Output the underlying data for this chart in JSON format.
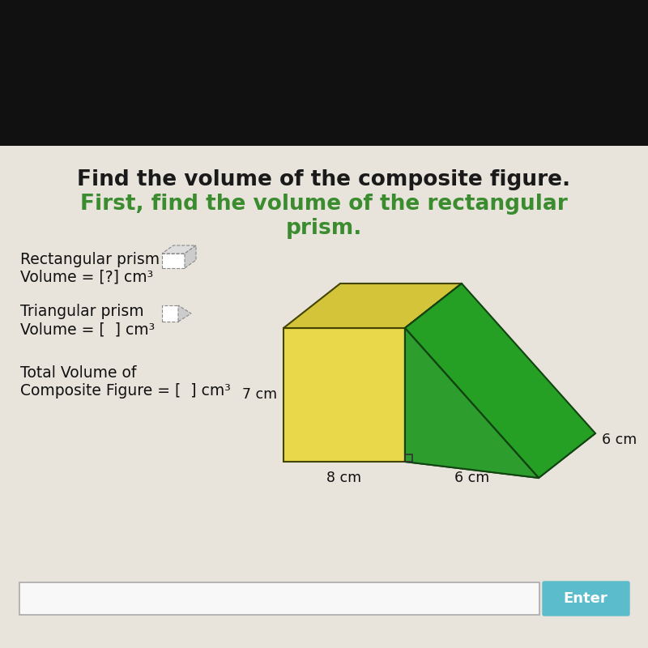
{
  "title_line1": "Find the volume of the composite figure.",
  "title_line2": "First, find the volume of the rectangular",
  "title_line3": "prism.",
  "title_color1": "#1a1a1a",
  "title_color2": "#3a8c2f",
  "label1": "Rectangular prism",
  "label2": "Volume = [?] cm³",
  "label3": "Triangular prism",
  "label4": "Volume = [  ] cm³",
  "label5": "Total Volume of",
  "label6": "Composite Figure = [  ] cm³",
  "dim1": "7 cm",
  "dim2": "8 cm",
  "dim3": "6 cm",
  "dim4": "6 cm",
  "bg_top_color": "#111111",
  "bg_main_color": "#e8e4db",
  "yellow_front": "#e8d84a",
  "yellow_top": "#d4c43a",
  "yellow_right": "#b8a820",
  "green_front": "#2d9e2d",
  "green_side": "#1e7a1e",
  "green_slant": "#25a025",
  "green_bottom": "#176017",
  "input_color": "#f8f8f8",
  "enter_color": "#5bbccc",
  "enter_text": "Enter",
  "border_dark": "#444400",
  "green_border": "#114411"
}
